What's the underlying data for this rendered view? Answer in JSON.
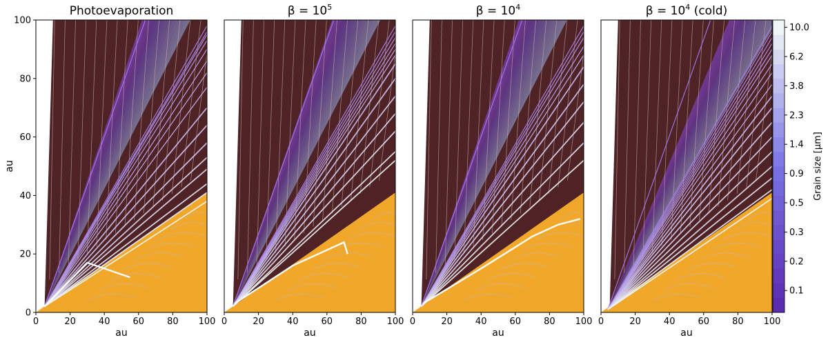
{
  "chart_data": {
    "type": "contour",
    "panels": [
      {
        "title": "Photoevaporation",
        "xlabel": "au",
        "ylabel": "au",
        "xlim": [
          0,
          100
        ],
        "ylim": [
          0,
          100
        ],
        "x_ticks": [
          "0",
          "20",
          "40",
          "60",
          "80",
          "100"
        ],
        "y_ticks": [
          "0",
          "20",
          "40",
          "60",
          "80",
          "100"
        ],
        "disk_edge": [
          [
            0,
            0
          ],
          [
            100,
            41
          ]
        ],
        "wind_inner_edge": [
          [
            5,
            2
          ],
          [
            62,
            100
          ]
        ],
        "streamline_end_heights": [
          100,
          98,
          96,
          95,
          93,
          90,
          86,
          82,
          77,
          70,
          64,
          58,
          53,
          49,
          44,
          41,
          38
        ],
        "dust_trajectories": [
          [
            [
              5,
              2
            ],
            [
              30,
              17
            ],
            [
              45,
              14
            ],
            [
              55,
              12
            ]
          ]
        ]
      },
      {
        "title": "β = 10^5",
        "title_main": "β = 10",
        "title_sup": "5",
        "xlabel": "au",
        "ylabel": "",
        "xlim": [
          0,
          100
        ],
        "ylim": [
          0,
          100
        ],
        "x_ticks": [
          "0",
          "20",
          "40",
          "60",
          "80",
          "100"
        ],
        "y_ticks": [],
        "disk_edge": [
          [
            0,
            0
          ],
          [
            100,
            41
          ]
        ],
        "wind_inner_edge": [
          [
            5,
            2
          ],
          [
            63,
            100
          ]
        ],
        "streamline_end_heights": [
          100,
          98,
          96,
          94,
          92,
          90,
          88,
          85,
          80,
          74,
          68,
          62,
          55,
          52
        ],
        "dust_trajectories": [
          [
            [
              6,
              3
            ],
            [
              40,
              16
            ],
            [
              70,
              24
            ],
            [
              72,
              20
            ]
          ]
        ]
      },
      {
        "title": "β = 10^4",
        "title_main": "β = 10",
        "title_sup": "4",
        "xlabel": "au",
        "ylabel": "",
        "xlim": [
          0,
          100
        ],
        "ylim": [
          0,
          100
        ],
        "x_ticks": [
          "0",
          "20",
          "40",
          "60",
          "80",
          "100"
        ],
        "y_ticks": [],
        "disk_edge": [
          [
            0,
            0
          ],
          [
            100,
            41
          ]
        ],
        "wind_inner_edge": [
          [
            5,
            2
          ],
          [
            62,
            100
          ]
        ],
        "streamline_end_heights": [
          100,
          98,
          96,
          94,
          91,
          88,
          84,
          78,
          72,
          65,
          58,
          52
        ],
        "dust_trajectories": [
          [
            [
              6,
              3
            ],
            [
              40,
              15
            ],
            [
              70,
              26
            ],
            [
              85,
              30
            ],
            [
              98,
              32
            ]
          ]
        ]
      },
      {
        "title": "β = 10^4 (cold)",
        "title_main": "β = 10",
        "title_sup": "4",
        "title_suffix": " (cold)",
        "xlabel": "au",
        "ylabel": "",
        "xlim": [
          0,
          100
        ],
        "ylim": [
          0,
          100
        ],
        "x_ticks": [
          "0",
          "20",
          "40",
          "60",
          "80",
          "100"
        ],
        "y_ticks": [],
        "disk_edge": [
          [
            0,
            0
          ],
          [
            100,
            41
          ]
        ],
        "wind_inner_edge": [
          [
            4,
            1
          ],
          [
            75,
            100
          ]
        ],
        "streamline_end_heights": [
          100,
          98,
          96,
          94,
          92,
          90,
          88,
          85,
          82,
          78,
          74,
          70,
          65,
          60,
          55,
          50,
          46,
          42,
          39
        ],
        "dust_trajectories": []
      }
    ],
    "colorbar": {
      "label": "Grain size [μm]",
      "tick_labels": [
        "0.1",
        "0.2",
        "0.3",
        "0.5",
        "0.9",
        "1.4",
        "2.3",
        "3.8",
        "6.2",
        "10.0"
      ],
      "levels": 20,
      "color_low": "#5b2bb0",
      "color_mid": "#7a73e6",
      "color_high": "#eef5f4"
    },
    "colors": {
      "wind_region": "#4f2226",
      "disk_surface": "#b25a20",
      "disk_midplane": "#f0a72a",
      "flow_arrows": "#c9b2b2",
      "dust_track": "#ffffff"
    }
  }
}
